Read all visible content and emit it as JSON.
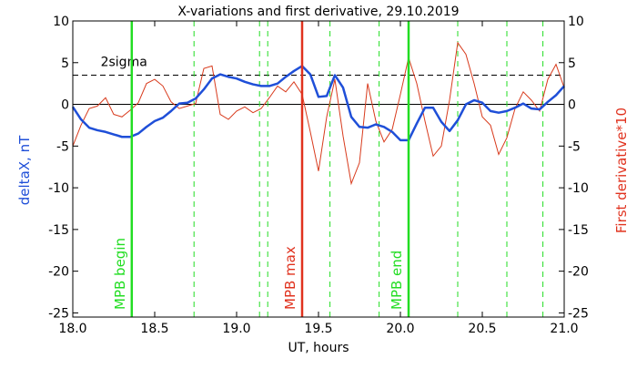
{
  "chart_data": {
    "type": "line",
    "title": "X-variations and first derivative, 29.10.2019",
    "xlabel": "UT, hours",
    "ylabel_left": "deltaX, nT",
    "ylabel_right": "First derivative*10",
    "xlim": [
      18.0,
      21.0
    ],
    "ylim": [
      -25.5,
      10
    ],
    "x_ticks": [
      18.0,
      18.5,
      19.0,
      19.5,
      20.0,
      20.5,
      21.0
    ],
    "x_tick_labels": [
      "18.0",
      "18.5",
      "19.0",
      "19.5",
      "20.0",
      "20.5",
      "21.0"
    ],
    "y_ticks": [
      10,
      5,
      0,
      -5,
      -10,
      -15,
      -20,
      -25
    ],
    "y_tick_labels": [
      "10",
      "5",
      "0",
      "-5",
      "-10",
      "-15",
      "-20",
      "-25"
    ],
    "colors": {
      "deltaX": "#1f4fd8",
      "derivative": "#d83a1c",
      "mpb_lines": "#22dd22",
      "max_line": "#e0321e",
      "axes": "#000000",
      "title_left": "#1f4fd8",
      "title_right": "#e0321e"
    },
    "series": [
      {
        "key": "deltaX",
        "x": [
          18.0,
          18.05,
          18.1,
          18.15,
          18.2,
          18.25,
          18.3,
          18.35,
          18.4,
          18.45,
          18.5,
          18.55,
          18.6,
          18.65,
          18.7,
          18.75,
          18.8,
          18.85,
          18.9,
          18.95,
          19.0,
          19.05,
          19.1,
          19.15,
          19.2,
          19.25,
          19.3,
          19.35,
          19.4,
          19.45,
          19.5,
          19.55,
          19.6,
          19.65,
          19.7,
          19.75,
          19.8,
          19.85,
          19.9,
          19.95,
          20.0,
          20.05,
          20.1,
          20.15,
          20.2,
          20.25,
          20.3,
          20.35,
          20.4,
          20.45,
          20.5,
          20.55,
          20.6,
          20.65,
          20.7,
          20.75,
          20.8,
          20.85,
          20.9,
          20.95,
          21.0
        ],
        "y": [
          -0.3,
          -1.8,
          -2.8,
          -3.1,
          -3.3,
          -3.6,
          -3.9,
          -3.9,
          -3.5,
          -2.7,
          -2.0,
          -1.6,
          -0.8,
          0.1,
          0.2,
          0.7,
          1.8,
          3.1,
          3.6,
          3.3,
          3.1,
          2.7,
          2.4,
          2.2,
          2.2,
          2.5,
          3.3,
          4.0,
          4.6,
          3.6,
          0.9,
          1.0,
          3.5,
          2.0,
          -1.5,
          -2.7,
          -2.8,
          -2.4,
          -2.7,
          -3.3,
          -4.3,
          -4.3,
          -2.3,
          -0.4,
          -0.4,
          -2.1,
          -3.2,
          -1.9,
          0.0,
          0.5,
          0.2,
          -0.8,
          -1.0,
          -0.8,
          -0.4,
          0.1,
          -0.5,
          -0.6,
          0.3,
          1.1,
          2.2
        ]
      },
      {
        "key": "derivative",
        "x": [
          18.0,
          18.05,
          18.1,
          18.15,
          18.2,
          18.25,
          18.3,
          18.35,
          18.4,
          18.45,
          18.5,
          18.55,
          18.6,
          18.65,
          18.7,
          18.75,
          18.8,
          18.85,
          18.9,
          18.95,
          19.0,
          19.05,
          19.1,
          19.15,
          19.2,
          19.25,
          19.3,
          19.35,
          19.4,
          19.45,
          19.5,
          19.55,
          19.6,
          19.65,
          19.7,
          19.75,
          19.8,
          19.85,
          19.9,
          19.95,
          20.0,
          20.05,
          20.1,
          20.15,
          20.2,
          20.25,
          20.3,
          20.35,
          20.4,
          20.45,
          20.5,
          20.55,
          20.6,
          20.65,
          20.7,
          20.75,
          20.8,
          20.85,
          20.9,
          20.95,
          21.0
        ],
        "y": [
          -5.0,
          -2.5,
          -0.5,
          -0.2,
          0.8,
          -1.2,
          -1.5,
          -0.7,
          0.2,
          2.5,
          3.0,
          2.2,
          0.3,
          -0.5,
          -0.2,
          0.1,
          4.3,
          4.6,
          -1.2,
          -1.8,
          -0.8,
          -0.3,
          -1.0,
          -0.5,
          0.8,
          2.2,
          1.5,
          2.7,
          1.2,
          -3.3,
          -8.0,
          -1.5,
          3.0,
          -3.8,
          -9.5,
          -7.0,
          2.5,
          -2.0,
          -4.5,
          -3.0,
          1.2,
          5.6,
          2.5,
          -2.0,
          -6.2,
          -5.0,
          0.5,
          7.4,
          6.0,
          2.5,
          -1.5,
          -2.5,
          -6.0,
          -4.0,
          -0.5,
          1.5,
          0.5,
          -0.8,
          3.0,
          4.8,
          2.0
        ]
      }
    ],
    "reference_lines": [
      {
        "label": "",
        "y": 0,
        "style": "solid"
      },
      {
        "label": "2sigma",
        "y": 3.5,
        "style": "dashed"
      }
    ],
    "solid_vertical_lines": [
      {
        "label": "MPB begin",
        "x": 18.36
      },
      {
        "label": "MPB max",
        "x": 19.4
      },
      {
        "label": "MPB end",
        "x": 20.05
      }
    ],
    "dashed_vertical_lines": [
      18.74,
      19.14,
      19.19,
      19.57,
      19.87,
      20.35,
      20.65,
      20.87
    ]
  }
}
